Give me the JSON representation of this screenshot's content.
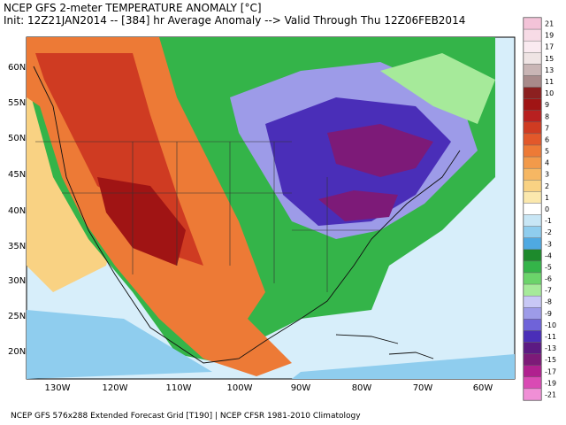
{
  "header": {
    "title": "NCEP GFS 2-meter TEMPERATURE ANOMALY [°C]",
    "subtitle": "Init: 12Z21JAN2014 -- [384] hr Average Anomaly --> Valid Through Thu 12Z06FEB2014"
  },
  "map": {
    "latitude_labels": [
      "60N",
      "55N",
      "50N",
      "45N",
      "40N",
      "35N",
      "30N",
      "25N",
      "20N"
    ],
    "longitude_labels": [
      "130W",
      "120W",
      "110W",
      "100W",
      "90W",
      "80W",
      "70W",
      "60W"
    ]
  },
  "colorbar": [
    {
      "label": "21",
      "color": "#f3c3d8"
    },
    {
      "label": "19",
      "color": "#f7dbe6"
    },
    {
      "label": "17",
      "color": "#faeaf0"
    },
    {
      "label": "15",
      "color": "#efe4e4"
    },
    {
      "label": "13",
      "color": "#c9b5b5"
    },
    {
      "label": "11",
      "color": "#a88a8a"
    },
    {
      "label": "10",
      "color": "#8c2020"
    },
    {
      "label": "9",
      "color": "#a01414"
    },
    {
      "label": "8",
      "color": "#b82020"
    },
    {
      "label": "7",
      "color": "#cf3b22"
    },
    {
      "label": "6",
      "color": "#e2582a"
    },
    {
      "label": "5",
      "color": "#ed7a36"
    },
    {
      "label": "4",
      "color": "#f29a4a"
    },
    {
      "label": "3",
      "color": "#f6b763"
    },
    {
      "label": "2",
      "color": "#f9d283"
    },
    {
      "label": "1",
      "color": "#fbe8ad"
    },
    {
      "label": "0",
      "color": "#ffffff"
    },
    {
      "label": "-1",
      "color": "#c8e6f5"
    },
    {
      "label": "-2",
      "color": "#8fcdee"
    },
    {
      "label": "-3",
      "color": "#4fa9e2"
    },
    {
      "label": "-4",
      "color": "#1d8a2c"
    },
    {
      "label": "-5",
      "color": "#34b449"
    },
    {
      "label": "-6",
      "color": "#6bd46a"
    },
    {
      "label": "-7",
      "color": "#a6ea9a"
    },
    {
      "label": "-8",
      "color": "#c8c8f5"
    },
    {
      "label": "-9",
      "color": "#9d9be8"
    },
    {
      "label": "-10",
      "color": "#6f63d9"
    },
    {
      "label": "-11",
      "color": "#4a2eb8"
    },
    {
      "label": "-13",
      "color": "#5c1a82"
    },
    {
      "label": "-15",
      "color": "#7d1a78"
    },
    {
      "label": "-17",
      "color": "#b0208f"
    },
    {
      "label": "-19",
      "color": "#d94ab4"
    },
    {
      "label": "-21",
      "color": "#f08fd6"
    }
  ],
  "footer": "NCEP GFS 576x288 Extended Forecast Grid [T190] | NCEP CFSR 1981-2010 Climatology"
}
